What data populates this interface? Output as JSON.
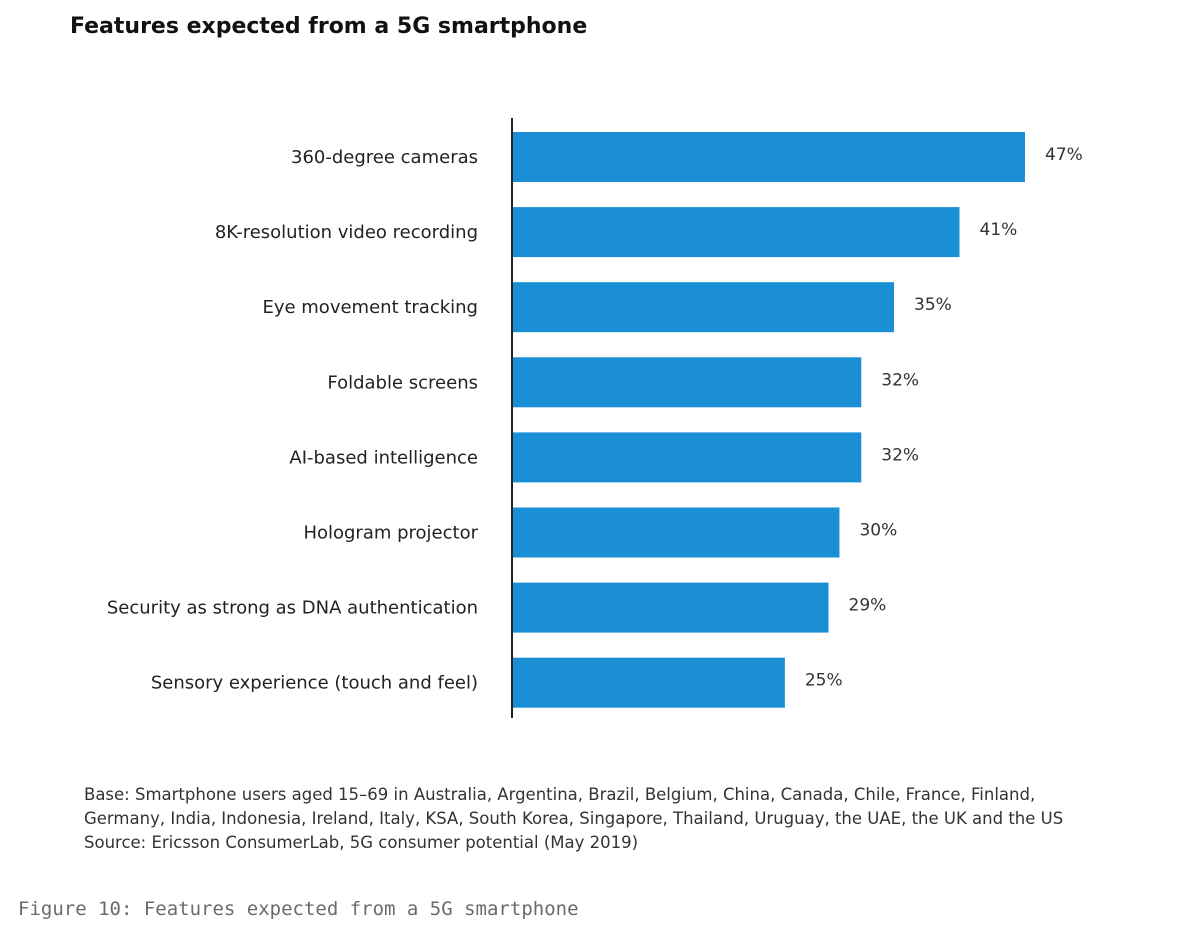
{
  "chart_data": {
    "type": "bar",
    "orientation": "horizontal",
    "title": "Features expected from a 5G smartphone",
    "categories": [
      "360-degree cameras",
      "8K-resolution video recording",
      "Eye movement tracking",
      "Foldable screens",
      "AI-based intelligence",
      "Hologram projector",
      "Security as strong as DNA authentication",
      "Sensory experience (touch and feel)"
    ],
    "values": [
      47,
      41,
      35,
      32,
      32,
      30,
      29,
      25
    ],
    "value_labels": [
      "47%",
      "41%",
      "35%",
      "32%",
      "32%",
      "30%",
      "29%",
      "25%"
    ],
    "unit": "%",
    "bar_color": "#1a8fd6",
    "axis_color": "#222222",
    "grid": false,
    "legend": "none"
  },
  "notes": {
    "base_line1": "Base: Smartphone users aged 15–69 in Australia, Argentina, Brazil, Belgium, China, Canada, Chile, France, Finland,",
    "base_line2": "Germany, India, Indonesia, Ireland, Italy, KSA, South Korea, Singapore, Thailand, Uruguay, the UAE, the UK and the US",
    "source": "Source: Ericsson ConsumerLab, 5G consumer potential (May 2019)"
  },
  "caption": "Figure 10: Features expected from a 5G smartphone"
}
